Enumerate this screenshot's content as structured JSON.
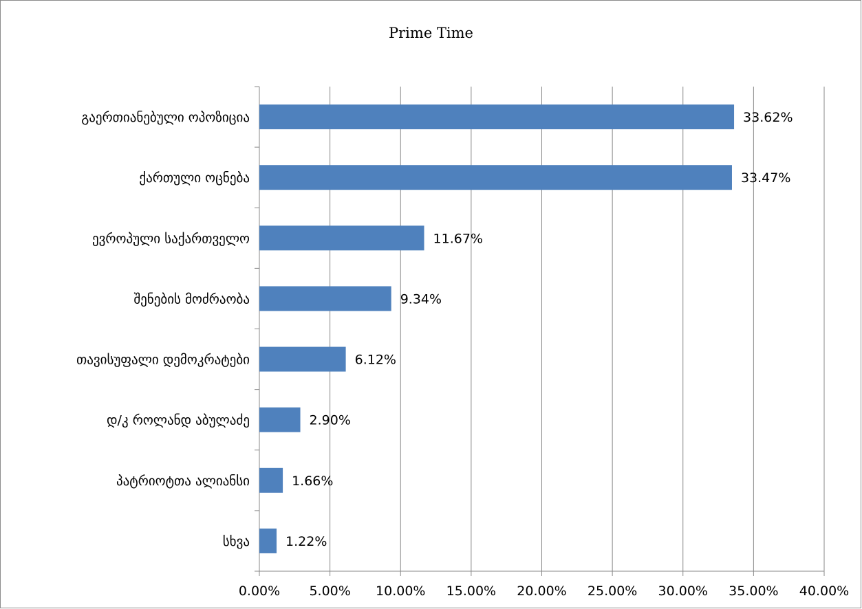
{
  "chart_data": {
    "type": "bar",
    "orientation": "horizontal",
    "title": "Prime Time",
    "categories": [
      "გაერთიანებული ოპოზიცია",
      "ქართული ოცნება",
      "ევროპული საქართველო",
      "შენების მოძრაობა",
      "თავისუფალი დემოკრატები",
      "დ/კ როლანდ აბულაძე",
      "პატრიოტთა ალიანსი",
      "სხვა"
    ],
    "values": [
      33.62,
      33.47,
      11.67,
      9.34,
      6.12,
      2.9,
      1.66,
      1.22
    ],
    "data_labels": [
      "33.62%",
      "33.47%",
      "11.67%",
      "9.34%",
      "6.12%",
      "2.90%",
      "1.66%",
      "1.22%"
    ],
    "xlim": [
      0,
      40
    ],
    "x_ticks": [
      0,
      5,
      10,
      15,
      20,
      25,
      30,
      35,
      40
    ],
    "x_tick_labels": [
      "0.00%",
      "5.00%",
      "10.00%",
      "15.00%",
      "20.00%",
      "25.00%",
      "30.00%",
      "35.00%",
      "40.00%"
    ],
    "xlabel": "",
    "ylabel": "",
    "grid": "vertical major gridlines",
    "legend": "none",
    "colors": {
      "bar": "#4f81bd",
      "grid": "#888888",
      "axis": "#888888"
    }
  }
}
